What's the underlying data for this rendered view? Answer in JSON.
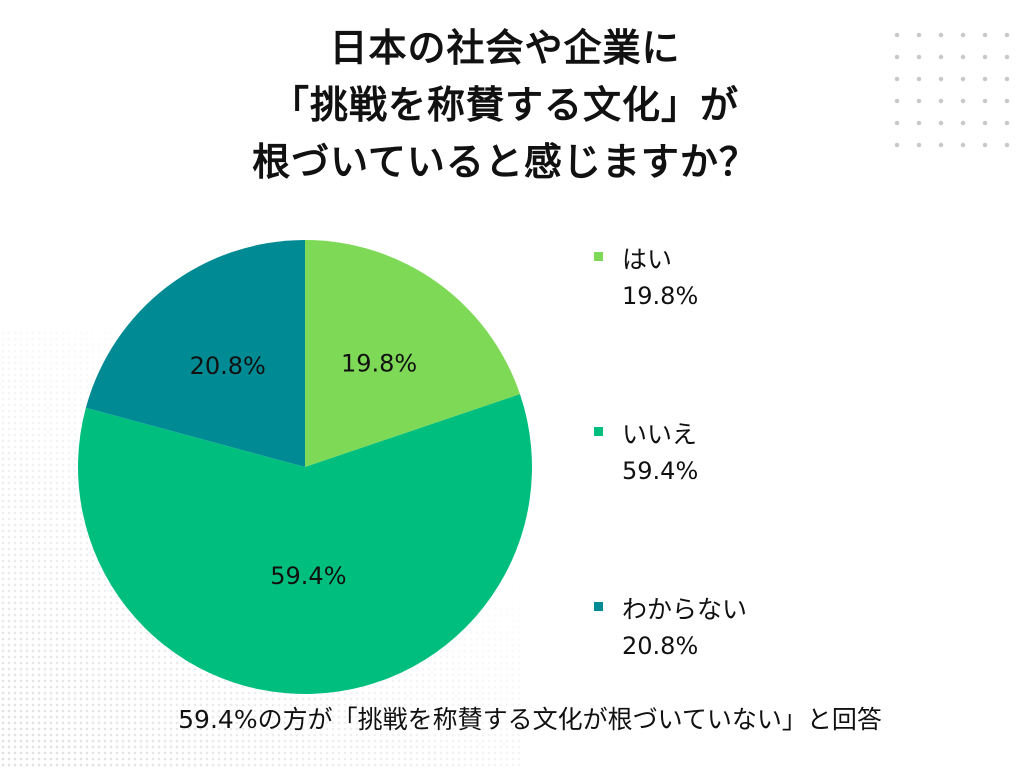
{
  "title_lines": [
    "日本の社会や企業に",
    "「挑戦を称賛する文化」が",
    "根づいていると感じますか？"
  ],
  "chart_data": {
    "type": "pie",
    "categories": [
      "はい",
      "いいえ",
      "わからない"
    ],
    "values": [
      19.8,
      59.4,
      20.8
    ],
    "labels": [
      "19.8%",
      "59.4%",
      "20.8%"
    ],
    "colors": [
      "#7ed957",
      "#00bf7e",
      "#008b94"
    ],
    "start": "12 o'clock",
    "direction": "clockwise",
    "legend_position": "right"
  },
  "footnote": "59.4%の方が「挑戦を称賛する文化が根づいていない」と回答"
}
